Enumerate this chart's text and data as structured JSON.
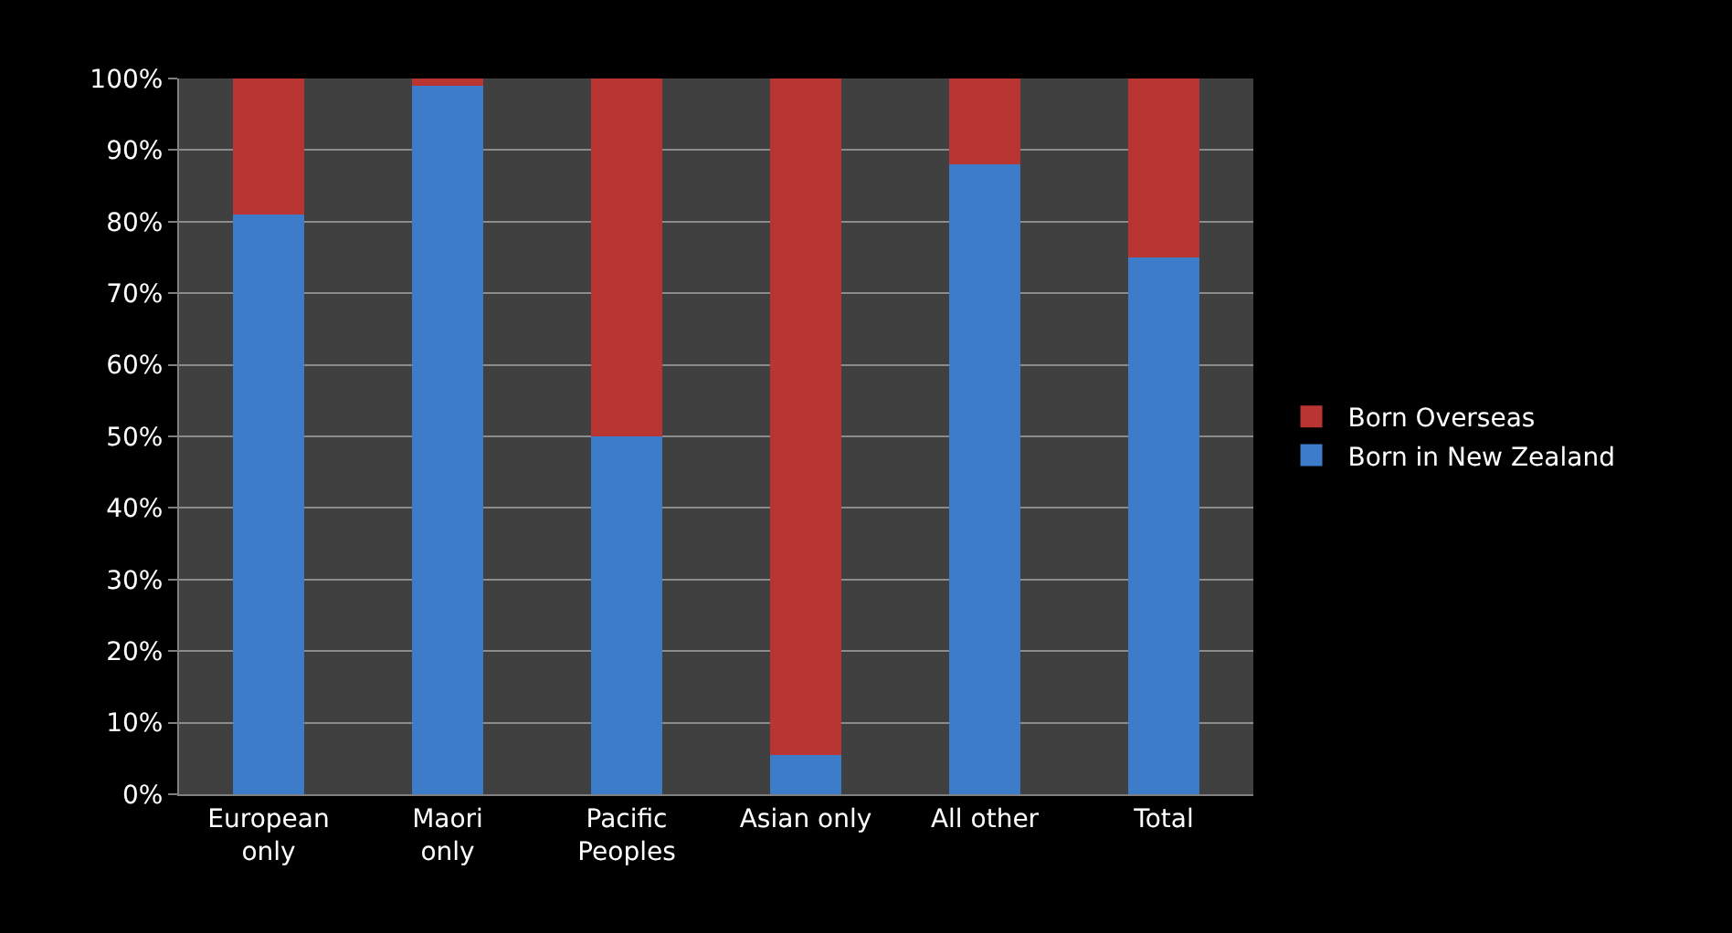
{
  "chart_data": {
    "type": "bar",
    "stacked": true,
    "categories": [
      "European\nonly",
      "Maori\nonly",
      "Pacific\nPeoples",
      "Asian only",
      "All other",
      "Total"
    ],
    "series": [
      {
        "name": "Born in New Zealand",
        "color": "#3d7cc9",
        "values": [
          81,
          99,
          50,
          5.5,
          88,
          75
        ]
      },
      {
        "name": "Born Overseas",
        "color": "#b83532",
        "values": [
          19,
          1,
          50,
          94.5,
          12,
          25
        ]
      }
    ],
    "ylim": [
      0,
      100
    ],
    "yticks": [
      {
        "value": 0,
        "label": "0%"
      },
      {
        "value": 10,
        "label": "10%"
      },
      {
        "value": 20,
        "label": "20%"
      },
      {
        "value": 30,
        "label": "30%"
      },
      {
        "value": 40,
        "label": "40%"
      },
      {
        "value": 50,
        "label": "50%"
      },
      {
        "value": 60,
        "label": "60%"
      },
      {
        "value": 70,
        "label": "70%"
      },
      {
        "value": 80,
        "label": "80%"
      },
      {
        "value": 90,
        "label": "90%"
      },
      {
        "value": 100,
        "label": "100%"
      }
    ],
    "grid": "y",
    "legend": "right"
  }
}
